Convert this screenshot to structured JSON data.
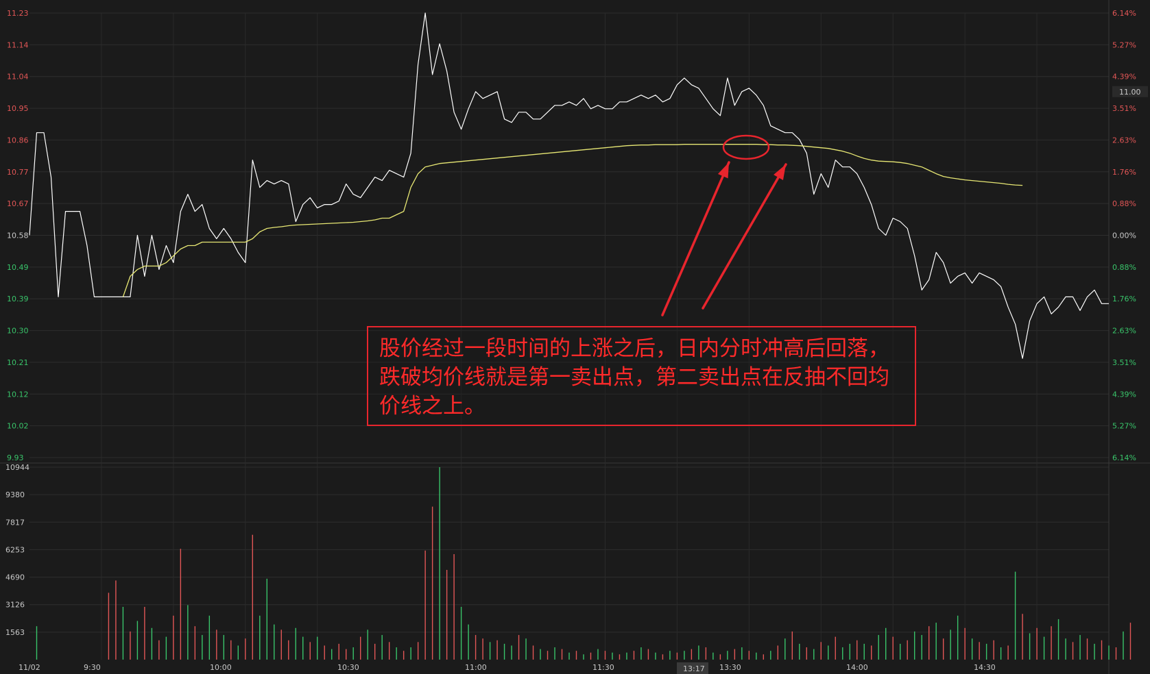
{
  "chart_data": {
    "type": "line",
    "price_axis": [
      "11.23",
      "11.14",
      "11.04",
      "10.95",
      "10.86",
      "10.77",
      "10.67",
      "10.58",
      "10.49",
      "10.39",
      "10.30",
      "10.21",
      "10.12",
      "10.02",
      "9.93"
    ],
    "pct_axis": [
      "6.14%",
      "5.27%",
      "4.39%",
      "3.51%",
      "2.63%",
      "1.76%",
      "0.88%",
      "0.00%",
      "0.88%",
      "1.76%",
      "2.63%",
      "3.51%",
      "4.39%",
      "5.27%",
      "6.14%"
    ],
    "ylim": [
      9.93,
      11.23
    ],
    "prev_close": 10.58,
    "current_price_label": "11.00",
    "volume_axis": [
      "10944",
      "9380",
      "7817",
      "6253",
      "4690",
      "3126",
      "1563"
    ],
    "volume_max": 10944,
    "date_label": "11/02",
    "time_labels": [
      "9:30",
      "10:00",
      "10:30",
      "11:00",
      "11:30",
      "13:30",
      "14:00",
      "14:30"
    ],
    "cursor_label": "13:17",
    "series": [
      {
        "values": [
          10.58,
          10.88,
          10.88,
          10.75,
          10.4,
          10.65,
          10.65,
          10.65,
          10.55,
          10.4,
          10.4,
          10.4,
          10.4,
          10.4,
          10.4,
          10.58,
          10.46,
          10.58,
          10.48,
          10.55,
          10.5,
          10.65,
          10.7,
          10.65,
          10.67,
          10.6,
          10.57,
          10.6,
          10.57,
          10.53,
          10.5,
          10.8,
          10.72,
          10.74,
          10.73,
          10.74,
          10.73,
          10.62,
          10.67,
          10.69,
          10.66,
          10.67,
          10.67,
          10.68,
          10.73,
          10.7,
          10.69,
          10.72,
          10.75,
          10.74,
          10.77,
          10.76,
          10.75,
          10.82,
          11.08,
          11.23,
          11.05,
          11.14,
          11.06,
          10.94,
          10.89,
          10.95,
          11.0,
          10.98,
          10.99,
          11.0,
          10.92,
          10.91,
          10.94,
          10.94,
          10.92,
          10.92,
          10.94,
          10.96,
          10.96,
          10.97,
          10.96,
          10.98,
          10.95,
          10.96,
          10.95,
          10.95,
          10.97,
          10.97,
          10.98,
          10.99,
          10.98,
          10.99,
          10.97,
          10.98,
          11.02,
          11.04,
          11.02,
          11.01,
          10.98,
          10.95,
          10.93,
          11.04,
          10.96,
          11.0,
          11.01,
          10.99,
          10.96,
          10.9,
          10.89,
          10.88,
          10.88,
          10.86,
          10.82,
          10.7,
          10.76,
          10.72,
          10.8,
          10.78,
          10.78,
          10.76,
          10.72,
          10.67,
          10.6,
          10.58,
          10.63,
          10.62,
          10.6,
          10.52,
          10.42,
          10.45,
          10.53,
          10.5,
          10.44,
          10.46,
          10.47,
          10.44,
          10.47,
          10.46,
          10.45,
          10.43,
          10.37,
          10.32,
          10.22,
          10.33,
          10.38,
          10.4,
          10.35,
          10.37,
          10.4,
          10.4,
          10.36,
          10.4,
          10.42,
          10.38,
          10.38
        ],
        "color": "#ffffff"
      },
      {
        "values": [
          null,
          null,
          null,
          null,
          null,
          null,
          null,
          null,
          null,
          null,
          null,
          null,
          null,
          10.4,
          10.46,
          10.48,
          10.49,
          10.49,
          10.49,
          10.5,
          10.52,
          10.54,
          10.55,
          10.55,
          10.56,
          10.56,
          10.56,
          10.56,
          10.56,
          10.56,
          10.56,
          10.57,
          10.59,
          10.6,
          10.603,
          10.605,
          10.608,
          10.61,
          10.611,
          10.612,
          10.613,
          10.614,
          10.615,
          10.616,
          10.617,
          10.618,
          10.62,
          10.622,
          10.625,
          10.63,
          10.63,
          10.64,
          10.65,
          10.72,
          10.76,
          10.78,
          10.785,
          10.79,
          10.792,
          10.794,
          10.796,
          10.798,
          10.8,
          10.802,
          10.804,
          10.806,
          10.808,
          10.81,
          10.812,
          10.814,
          10.816,
          10.818,
          10.82,
          10.822,
          10.824,
          10.826,
          10.828,
          10.83,
          10.832,
          10.834,
          10.836,
          10.838,
          10.84,
          10.842,
          10.843,
          10.844,
          10.844,
          10.845,
          10.845,
          10.845,
          10.845,
          10.846,
          10.846,
          10.846,
          10.846,
          10.846,
          10.846,
          10.846,
          10.846,
          10.846,
          10.846,
          10.846,
          10.845,
          10.845,
          10.844,
          10.844,
          10.843,
          10.842,
          10.84,
          10.838,
          10.836,
          10.834,
          10.83,
          10.826,
          10.82,
          10.812,
          10.805,
          10.8,
          10.797,
          10.796,
          10.795,
          10.793,
          10.79,
          10.785,
          10.78,
          10.77,
          10.76,
          10.752,
          10.748,
          10.745,
          10.742,
          10.74,
          10.738,
          10.736,
          10.734,
          10.732,
          10.729,
          10.727,
          10.726
        ],
        "color": "#e8e874"
      }
    ],
    "volume_colors": [
      "#e25656",
      "#39c46a",
      "#c9c9c9"
    ],
    "volumes": [
      [
        1,
        1900
      ],
      [
        11,
        3800
      ],
      [
        12,
        4500
      ],
      [
        13,
        3000
      ],
      [
        14,
        1600
      ],
      [
        15,
        2200
      ],
      [
        16,
        3000
      ],
      [
        17,
        1800
      ],
      [
        18,
        1100
      ],
      [
        19,
        1300
      ],
      [
        20,
        2500
      ],
      [
        21,
        6300
      ],
      [
        22,
        3100
      ],
      [
        23,
        1900
      ],
      [
        24,
        1400
      ],
      [
        25,
        2500
      ],
      [
        26,
        1700
      ],
      [
        27,
        1400
      ],
      [
        28,
        1100
      ],
      [
        29,
        800
      ],
      [
        30,
        1200
      ],
      [
        31,
        7100
      ],
      [
        32,
        2500
      ],
      [
        33,
        4600
      ],
      [
        34,
        2000
      ],
      [
        35,
        1700
      ],
      [
        36,
        1100
      ],
      [
        37,
        1800
      ],
      [
        38,
        1300
      ],
      [
        39,
        1000
      ],
      [
        40,
        1300
      ],
      [
        41,
        800
      ],
      [
        42,
        600
      ],
      [
        43,
        900
      ],
      [
        44,
        600
      ],
      [
        45,
        700
      ],
      [
        46,
        1300
      ],
      [
        47,
        1700
      ],
      [
        48,
        900
      ],
      [
        49,
        1400
      ],
      [
        50,
        1000
      ],
      [
        51,
        700
      ],
      [
        52,
        500
      ],
      [
        53,
        700
      ],
      [
        54,
        1000
      ],
      [
        55,
        6200
      ],
      [
        56,
        8700
      ],
      [
        57,
        10944
      ],
      [
        58,
        5100
      ],
      [
        59,
        6000
      ],
      [
        60,
        3000
      ],
      [
        61,
        2000
      ],
      [
        62,
        1400
      ],
      [
        63,
        1200
      ],
      [
        64,
        1000
      ],
      [
        65,
        1100
      ],
      [
        66,
        900
      ],
      [
        67,
        800
      ],
      [
        68,
        1400
      ],
      [
        69,
        1200
      ],
      [
        70,
        800
      ],
      [
        71,
        600
      ],
      [
        72,
        500
      ],
      [
        73,
        700
      ],
      [
        74,
        600
      ],
      [
        75,
        400
      ],
      [
        76,
        500
      ],
      [
        77,
        300
      ],
      [
        78,
        400
      ],
      [
        79,
        600
      ],
      [
        80,
        500
      ],
      [
        81,
        400
      ],
      [
        82,
        300
      ],
      [
        83,
        400
      ],
      [
        84,
        500
      ],
      [
        85,
        700
      ],
      [
        86,
        600
      ],
      [
        87,
        400
      ],
      [
        88,
        300
      ],
      [
        89,
        500
      ],
      [
        90,
        400
      ],
      [
        91,
        500
      ],
      [
        92,
        600
      ],
      [
        93,
        800
      ],
      [
        94,
        700
      ],
      [
        95,
        400
      ],
      [
        96,
        300
      ],
      [
        97,
        500
      ],
      [
        98,
        600
      ],
      [
        99,
        700
      ],
      [
        100,
        500
      ],
      [
        101,
        400
      ],
      [
        102,
        300
      ],
      [
        103,
        500
      ],
      [
        104,
        800
      ],
      [
        105,
        1200
      ],
      [
        106,
        1600
      ],
      [
        107,
        900
      ],
      [
        108,
        700
      ],
      [
        109,
        600
      ],
      [
        110,
        1000
      ],
      [
        111,
        800
      ],
      [
        112,
        1300
      ],
      [
        113,
        700
      ],
      [
        114,
        900
      ],
      [
        115,
        1100
      ],
      [
        116,
        900
      ],
      [
        117,
        800
      ],
      [
        118,
        1400
      ],
      [
        119,
        1800
      ],
      [
        120,
        1300
      ],
      [
        121,
        900
      ],
      [
        122,
        1100
      ],
      [
        123,
        1600
      ],
      [
        124,
        1400
      ],
      [
        125,
        1900
      ],
      [
        126,
        2100
      ],
      [
        127,
        1200
      ],
      [
        128,
        1700
      ],
      [
        129,
        2500
      ],
      [
        130,
        1800
      ],
      [
        131,
        1200
      ],
      [
        132,
        1000
      ],
      [
        133,
        900
      ],
      [
        134,
        1100
      ],
      [
        135,
        700
      ],
      [
        136,
        800
      ],
      [
        137,
        5000
      ],
      [
        138,
        2600
      ],
      [
        139,
        1500
      ],
      [
        140,
        1800
      ],
      [
        141,
        1300
      ],
      [
        142,
        1900
      ],
      [
        143,
        2300
      ],
      [
        144,
        1200
      ],
      [
        145,
        1000
      ],
      [
        146,
        1400
      ],
      [
        147,
        1200
      ],
      [
        148,
        900
      ],
      [
        149,
        1100
      ],
      [
        150,
        800
      ],
      [
        151,
        700
      ],
      [
        152,
        1600
      ],
      [
        153,
        2100
      ]
    ],
    "volume_color_index": [
      1,
      0,
      0,
      1,
      0,
      1,
      0,
      1,
      0,
      1,
      0,
      0,
      1,
      0,
      1,
      1,
      0,
      1,
      0,
      1,
      0,
      0,
      1,
      1,
      1,
      0,
      0,
      1,
      1,
      0,
      1,
      0,
      1,
      0,
      0,
      1,
      0,
      1,
      0,
      1,
      0,
      1,
      0,
      1,
      0,
      0,
      0,
      1,
      0,
      0,
      1,
      1,
      0,
      0,
      1,
      0,
      1,
      1,
      0,
      1,
      0,
      1,
      0,
      1,
      0,
      1,
      0,
      1,
      0,
      1,
      0,
      1,
      0,
      1,
      0,
      1,
      0,
      1,
      0,
      1,
      0,
      1,
      0,
      1,
      0,
      1,
      0,
      1,
      0,
      1,
      0,
      1,
      0,
      1,
      0,
      1,
      0,
      1,
      0,
      1,
      0,
      1,
      0,
      1,
      1,
      0,
      1,
      0,
      1,
      1,
      0,
      1,
      0,
      1,
      1,
      0,
      1,
      0,
      1,
      1,
      0,
      1,
      0,
      1,
      0,
      1,
      0,
      1,
      0,
      1,
      0,
      1,
      0,
      1,
      1,
      0,
      1,
      0,
      1,
      0,
      1,
      0,
      1,
      0,
      1,
      0,
      0,
      1,
      0,
      1,
      0,
      1
    ]
  },
  "annotation": {
    "text": "股价经过一段时间的上涨之后，日内分时冲高后回落，跌破均价线就是第一卖出点，第二卖出点在反抽不回均价线之上。",
    "color": "#e8252d"
  }
}
